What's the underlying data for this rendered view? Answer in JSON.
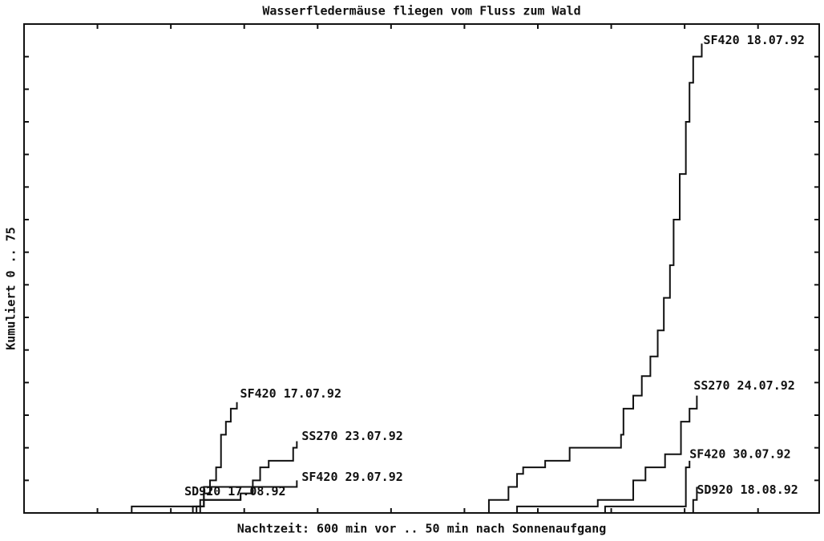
{
  "chart_data": {
    "type": "step",
    "title": "Wasserfledermäuse fliegen vom Fluss zum Wald",
    "xlabel": "Nachtzeit: 600 min vor .. 50 min nach Sonnenaufgang",
    "ylabel": "Kumuliert 0 .. 75",
    "xlim": [
      -600,
      50
    ],
    "ylim": [
      0,
      75
    ],
    "xticks": [
      -540,
      -480,
      -420,
      -360,
      -300,
      -240,
      -180,
      -120,
      -60,
      0
    ],
    "yticks": [
      5,
      10,
      15,
      20,
      25,
      30,
      35,
      40,
      45,
      50,
      55,
      60,
      65,
      70
    ],
    "color": "#111111",
    "series": [
      {
        "name": "SF420 18.07.92",
        "x": [
          -220,
          -204,
          -197,
          -192,
          -174,
          -154,
          -112,
          -110,
          -102,
          -95,
          -88,
          -82,
          -77,
          -72,
          -69,
          -64,
          -59,
          -56,
          -53,
          -46
        ],
        "values": [
          2,
          4,
          6,
          7,
          8,
          10,
          12,
          16,
          18,
          21,
          24,
          28,
          33,
          38,
          45,
          52,
          60,
          66,
          70,
          72
        ]
      },
      {
        "name": "SF420 17.07.92",
        "x": [
          -459,
          -453,
          -448,
          -443,
          -439,
          -435,
          -431,
          -426
        ],
        "values": [
          1,
          3,
          5,
          7,
          12,
          14,
          16,
          17
        ]
      },
      {
        "name": "SS270 23.07.92",
        "x": [
          -456,
          -423,
          -413,
          -407,
          -400,
          -380,
          -377
        ],
        "values": [
          2,
          3,
          5,
          7,
          8,
          10,
          11
        ]
      },
      {
        "name": "SF420 29.07.92",
        "x": [
          -462,
          -453,
          -377
        ],
        "values": [
          1,
          4,
          5
        ]
      },
      {
        "name": "SD920 17.08.92",
        "x": [
          -512,
          -453,
          -423
        ],
        "values": [
          1,
          2,
          3
        ]
      },
      {
        "name": "SS270 24.07.92",
        "x": [
          -197,
          -131,
          -102,
          -92,
          -76,
          -63,
          -56,
          -50
        ],
        "values": [
          1,
          2,
          5,
          7,
          9,
          14,
          16,
          18
        ]
      },
      {
        "name": "SF420 30.07.92",
        "x": [
          -125,
          -59,
          -56
        ],
        "values": [
          1,
          7,
          8
        ]
      },
      {
        "name": "SD920 18.08.92",
        "x": [
          -53,
          -50
        ],
        "values": [
          2,
          4
        ]
      }
    ]
  }
}
